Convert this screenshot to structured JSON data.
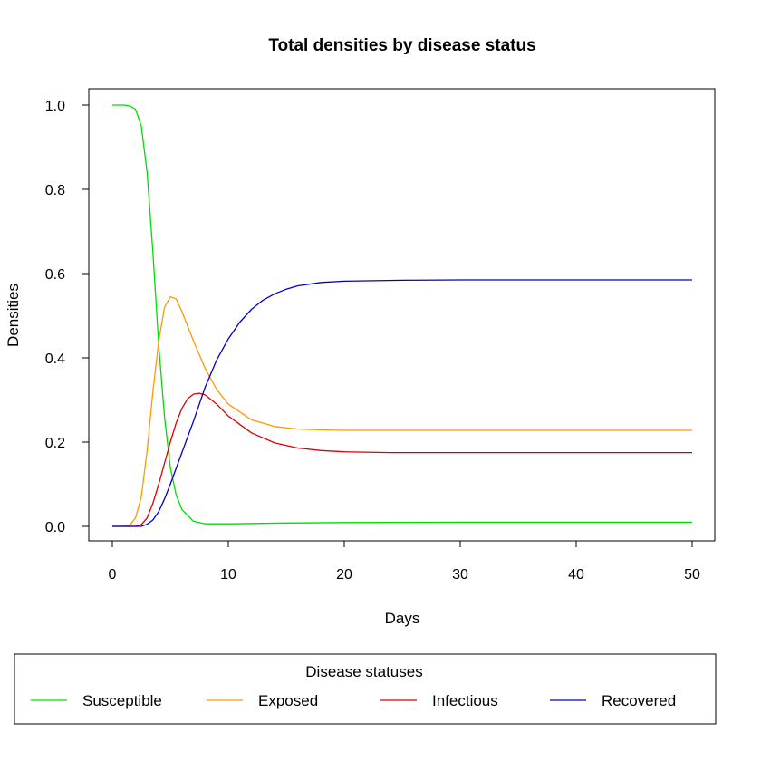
{
  "chart_data": {
    "type": "line",
    "title": "Total densities by disease status",
    "xlabel": "Days",
    "ylabel": "Densities",
    "xlim": [
      0,
      50
    ],
    "ylim": [
      0,
      1.0
    ],
    "x_ticks": [
      0,
      10,
      20,
      30,
      40,
      50
    ],
    "y_ticks": [
      0.0,
      0.2,
      0.4,
      0.6,
      0.8,
      1.0
    ],
    "x_tick_labels": [
      "0",
      "10",
      "20",
      "30",
      "40",
      "50"
    ],
    "y_tick_labels": [
      "0.0",
      "0.2",
      "0.4",
      "0.6",
      "0.8",
      "1.0"
    ],
    "grid": false,
    "legend": {
      "title": "Disease statuses",
      "placement": "bottom"
    },
    "series": [
      {
        "name": "Susceptible",
        "color": "#00dd00",
        "x": [
          0,
          1,
          1.5,
          2,
          2.5,
          3,
          3.5,
          4,
          4.5,
          5,
          5.5,
          6,
          7,
          8,
          10,
          15,
          20,
          30,
          40,
          50
        ],
        "y": [
          1.0,
          1.0,
          0.998,
          0.99,
          0.95,
          0.84,
          0.65,
          0.43,
          0.26,
          0.14,
          0.075,
          0.04,
          0.012,
          0.006,
          0.006,
          0.008,
          0.009,
          0.01,
          0.01,
          0.01
        ]
      },
      {
        "name": "Exposed",
        "color": "#ff9900",
        "x": [
          0,
          1,
          1.5,
          2,
          2.5,
          3,
          3.5,
          4,
          4.5,
          5,
          5.5,
          6,
          7,
          8,
          9,
          10,
          12,
          14,
          16,
          18,
          20,
          30,
          40,
          50
        ],
        "y": [
          0,
          0,
          0.003,
          0.02,
          0.07,
          0.18,
          0.32,
          0.44,
          0.52,
          0.545,
          0.54,
          0.51,
          0.44,
          0.375,
          0.325,
          0.29,
          0.253,
          0.237,
          0.231,
          0.229,
          0.228,
          0.228,
          0.228,
          0.228
        ]
      },
      {
        "name": "Infectious",
        "color": "#dd0000",
        "x": [
          0,
          2,
          2.5,
          3,
          3.5,
          4,
          4.5,
          5,
          5.5,
          6,
          6.5,
          7,
          7.5,
          8,
          9,
          10,
          12,
          14,
          16,
          18,
          20,
          24,
          30,
          40,
          50
        ],
        "y": [
          0,
          0,
          0.004,
          0.02,
          0.055,
          0.1,
          0.15,
          0.2,
          0.245,
          0.28,
          0.303,
          0.314,
          0.316,
          0.312,
          0.29,
          0.262,
          0.222,
          0.198,
          0.186,
          0.18,
          0.177,
          0.175,
          0.175,
          0.175,
          0.175
        ]
      },
      {
        "name": "Recovered",
        "color": "#0000cc",
        "x": [
          0,
          2.5,
          3,
          3.5,
          4,
          4.5,
          5,
          6,
          7,
          8,
          9,
          10,
          11,
          12,
          13,
          14,
          15,
          16,
          18,
          20,
          25,
          30,
          40,
          50
        ],
        "y": [
          0,
          0,
          0.005,
          0.015,
          0.035,
          0.065,
          0.1,
          0.175,
          0.25,
          0.33,
          0.395,
          0.445,
          0.485,
          0.515,
          0.537,
          0.552,
          0.563,
          0.571,
          0.579,
          0.582,
          0.584,
          0.585,
          0.585,
          0.585
        ]
      }
    ]
  }
}
